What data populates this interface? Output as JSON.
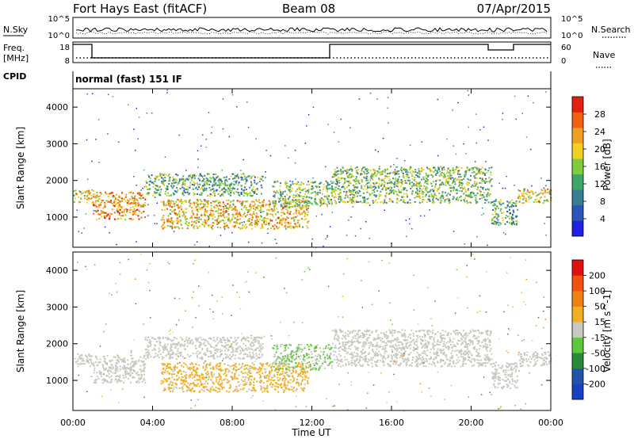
{
  "header": {
    "radar": "Fort Hays East (fitACF)",
    "beam": "Beam 08",
    "date": "07/Apr/2015"
  },
  "noise_panel": {
    "left_label": "N.Sky",
    "right_label": "N.Search",
    "left_ticks": [
      "10^5",
      "10^0"
    ],
    "right_ticks": [
      "10^5",
      "10^0"
    ]
  },
  "freq_panel": {
    "left_label_line1": "Freq.",
    "left_label_line2": "[MHz]",
    "right_label": "Nave",
    "left_ticks": [
      "18",
      "8"
    ],
    "right_ticks": [
      "60",
      "0"
    ]
  },
  "cpid_panel": {
    "label": "CPID",
    "mode_text": "normal (fast) 151 IF"
  },
  "colors": {
    "power_scale": [
      "#2020e0",
      "#2b55b8",
      "#3a7d94",
      "#3fa66b",
      "#7fcc3c",
      "#f0d020",
      "#f0a020",
      "#f06010",
      "#e02010"
    ],
    "velocity_scale": [
      "#1a3fc0",
      "#2255a8",
      "#2a8a3a",
      "#5ec83a",
      "#c8c8c0",
      "#f0b020",
      "#f08010",
      "#f05010",
      "#e01010"
    ]
  },
  "chart_data": [
    {
      "type": "heatmap",
      "title": "Power",
      "xlabel": "",
      "ylabel": "Slant Range [km]",
      "xlim": [
        "00:00",
        "24:00"
      ],
      "ylim": [
        180,
        4500
      ],
      "x_ticks": [
        "00:00",
        "04:00",
        "08:00",
        "12:00",
        "16:00",
        "20:00",
        "00:00"
      ],
      "y_ticks": [
        "1000",
        "2000",
        "3000",
        "4000"
      ],
      "colorbar": {
        "label": "Power [dB]",
        "ticks": [
          "28",
          "24",
          "20",
          "16",
          "12",
          "8",
          "4"
        ],
        "range": [
          0,
          30
        ]
      },
      "features": [
        {
          "hours": [
            0,
            1
          ],
          "range_km": [
            1400,
            1750
          ],
          "value": 20
        },
        {
          "hours": [
            1,
            3.6
          ],
          "range_km": [
            950,
            1700
          ],
          "value": 22
        },
        {
          "hours": [
            3.6,
            9.5
          ],
          "range_km": [
            1600,
            2200
          ],
          "value": 12
        },
        {
          "hours": [
            4.4,
            11.8
          ],
          "range_km": [
            700,
            1500
          ],
          "value": 20
        },
        {
          "hours": [
            10,
            13
          ],
          "range_km": [
            1300,
            2000
          ],
          "value": 14
        },
        {
          "hours": [
            13,
            21
          ],
          "range_km": [
            1400,
            2400
          ],
          "value": 14
        },
        {
          "hours": [
            21,
            22.3
          ],
          "range_km": [
            800,
            1500
          ],
          "value": 12
        },
        {
          "hours": [
            22.3,
            24
          ],
          "range_km": [
            1400,
            1800
          ],
          "value": 18
        }
      ]
    },
    {
      "type": "heatmap",
      "title": "Velocity",
      "xlabel": "Time UT",
      "ylabel": "Slant Range [km]",
      "xlim": [
        "00:00",
        "24:00"
      ],
      "ylim": [
        180,
        4500
      ],
      "x_ticks": [
        "00:00",
        "04:00",
        "08:00",
        "12:00",
        "16:00",
        "20:00",
        "00:00"
      ],
      "y_ticks": [
        "1000",
        "2000",
        "3000",
        "4000"
      ],
      "colorbar": {
        "label": "Velocity [m s^-1]",
        "ticks": [
          "200",
          "100",
          "50",
          "15",
          "-15",
          "-50",
          "-100",
          "-200"
        ],
        "range": [
          -250,
          250
        ]
      },
      "features": [
        {
          "hours": [
            0,
            1
          ],
          "range_km": [
            1400,
            1750
          ],
          "value": 0
        },
        {
          "hours": [
            1,
            3.6
          ],
          "range_km": [
            950,
            1700
          ],
          "value": 0
        },
        {
          "hours": [
            3.6,
            9.5
          ],
          "range_km": [
            1600,
            2200
          ],
          "value": 0
        },
        {
          "hours": [
            4.4,
            11.8
          ],
          "range_km": [
            700,
            1500
          ],
          "value": 40
        },
        {
          "hours": [
            10,
            13
          ],
          "range_km": [
            1300,
            2000
          ],
          "value": -30
        },
        {
          "hours": [
            13,
            21
          ],
          "range_km": [
            1400,
            2400
          ],
          "value": 0
        },
        {
          "hours": [
            21,
            22.3
          ],
          "range_km": [
            800,
            1500
          ],
          "value": 0
        },
        {
          "hours": [
            22.3,
            24
          ],
          "range_km": [
            1400,
            1800
          ],
          "value": 0
        }
      ]
    }
  ]
}
